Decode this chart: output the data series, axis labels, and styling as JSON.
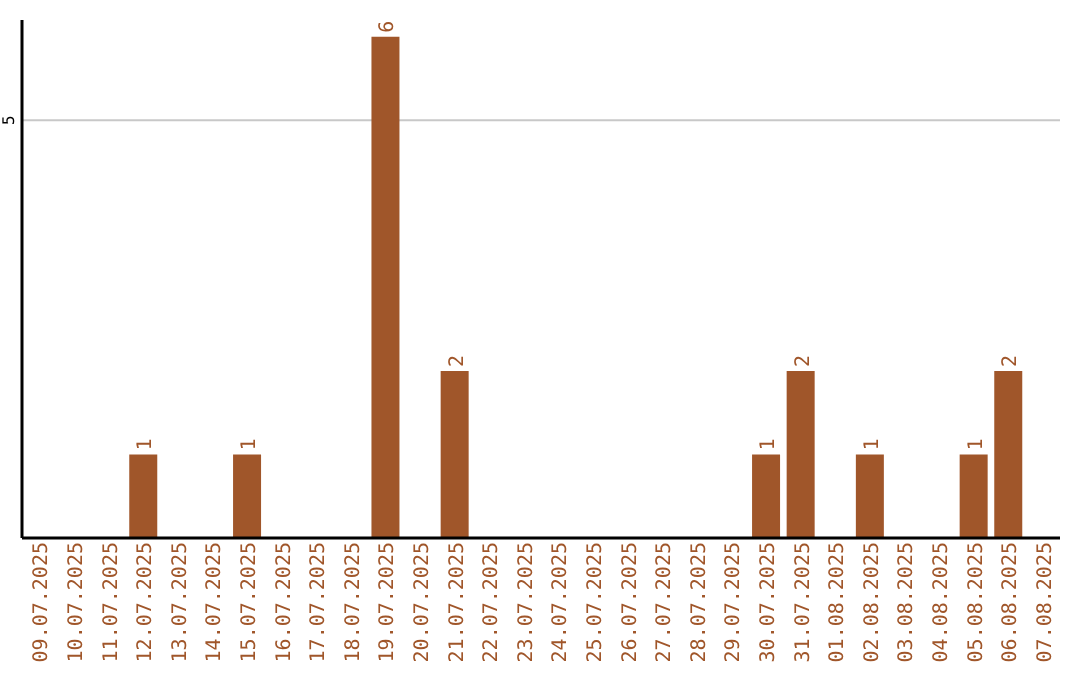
{
  "chart_data": {
    "type": "bar",
    "categories": [
      "09.07.2025",
      "10.07.2025",
      "11.07.2025",
      "12.07.2025",
      "13.07.2025",
      "14.07.2025",
      "15.07.2025",
      "16.07.2025",
      "17.07.2025",
      "18.07.2025",
      "19.07.2025",
      "20.07.2025",
      "21.07.2025",
      "22.07.2025",
      "23.07.2025",
      "24.07.2025",
      "25.07.2025",
      "26.07.2025",
      "27.07.2025",
      "28.07.2025",
      "29.07.2025",
      "30.07.2025",
      "31.07.2025",
      "01.08.2025",
      "02.08.2025",
      "03.08.2025",
      "04.08.2025",
      "05.08.2025",
      "06.08.2025",
      "07.08.2025"
    ],
    "values": [
      0,
      0,
      0,
      1,
      0,
      0,
      1,
      0,
      0,
      0,
      6,
      0,
      2,
      0,
      0,
      0,
      0,
      0,
      0,
      0,
      0,
      1,
      2,
      0,
      1,
      0,
      0,
      1,
      2,
      0
    ],
    "value_labels": [
      null,
      null,
      null,
      "1",
      null,
      null,
      "1",
      null,
      null,
      null,
      "6",
      null,
      "2",
      null,
      null,
      null,
      null,
      null,
      null,
      null,
      null,
      "1",
      "2",
      null,
      "1",
      null,
      null,
      "1",
      "2",
      null
    ],
    "color": "#a0562a",
    "ylim": [
      0,
      6.2
    ],
    "yticks": [
      5
    ],
    "grid": "y"
  }
}
